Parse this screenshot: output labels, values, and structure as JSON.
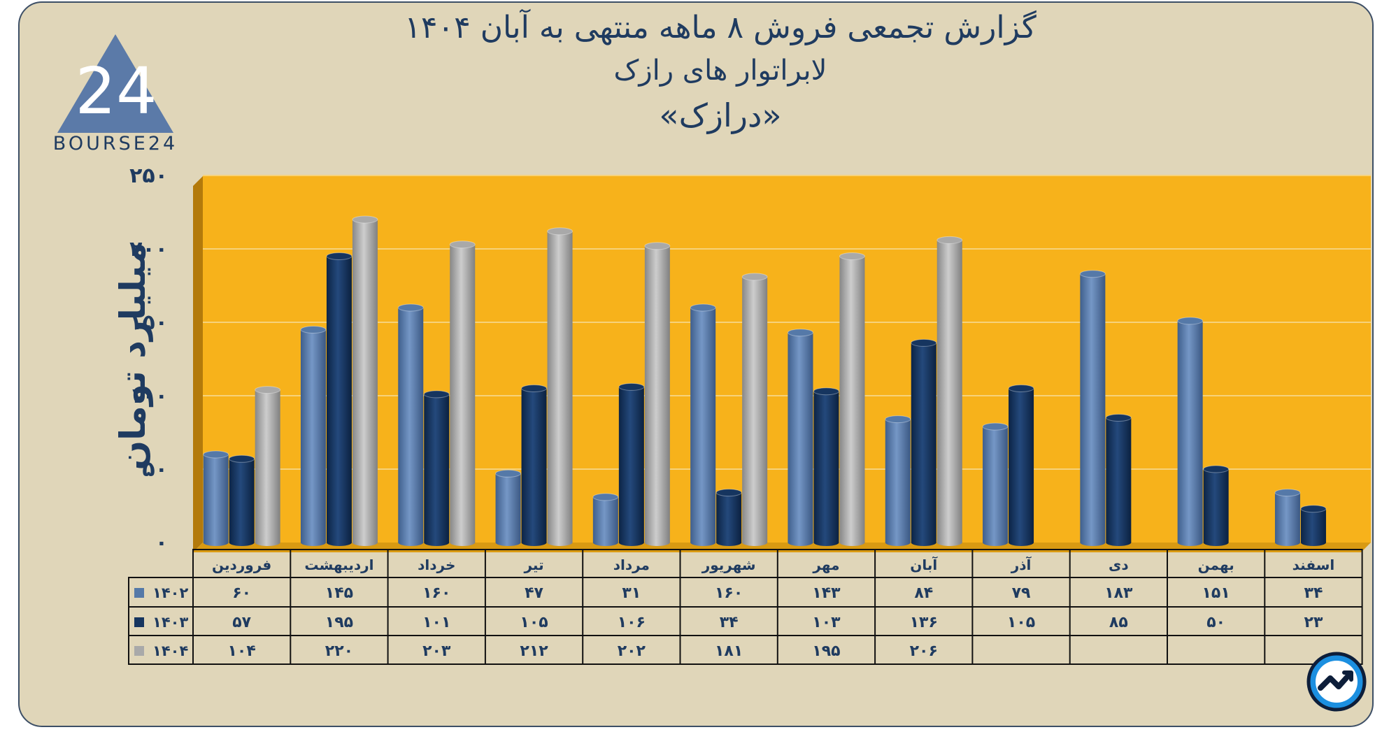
{
  "title": {
    "line1": "گزارش تجمعی فروش ۸ ماهه منتهی به آبان ۱۴۰۴",
    "line2": "لابراتوار های رازک",
    "line3": "«درازک»"
  },
  "logo": {
    "text": "BOURSE24",
    "mark": "24"
  },
  "badge": {
    "icon": "trend-arrow-icon"
  },
  "colors": {
    "background": "#e0d6b9",
    "plot": "#f7b21b",
    "series_1402": "#5579a8",
    "series_1403": "#16355f",
    "series_1404": "#a9a9a9",
    "text": "#1f3b60"
  },
  "chart_data": {
    "type": "bar",
    "ylabel": "میلیارد تومان",
    "ylim": [
      0,
      250
    ],
    "yticks": [
      0,
      50,
      100,
      150,
      200,
      250
    ],
    "ytick_labels": [
      "۰",
      "۵۰",
      "۱۰۰",
      "۱۵۰",
      "۲۰۰",
      "۲۵۰"
    ],
    "grid": true,
    "categories": [
      "فروردین",
      "اردیبهشت",
      "خرداد",
      "تیر",
      "مرداد",
      "شهریور",
      "مهر",
      "آبان",
      "آذر",
      "دی",
      "بهمن",
      "اسفند"
    ],
    "series": [
      {
        "name": "۱۴۰۲",
        "color": "#5579a8",
        "values": [
          60,
          145,
          160,
          47,
          31,
          160,
          143,
          84,
          79,
          183,
          151,
          34
        ],
        "labels": [
          "۶۰",
          "۱۴۵",
          "۱۶۰",
          "۴۷",
          "۳۱",
          "۱۶۰",
          "۱۴۳",
          "۸۴",
          "۷۹",
          "۱۸۳",
          "۱۵۱",
          "۳۴"
        ]
      },
      {
        "name": "۱۴۰۳",
        "color": "#16355f",
        "values": [
          57,
          195,
          101,
          105,
          106,
          34,
          103,
          136,
          105,
          85,
          50,
          23
        ],
        "labels": [
          "۵۷",
          "۱۹۵",
          "۱۰۱",
          "۱۰۵",
          "۱۰۶",
          "۳۴",
          "۱۰۳",
          "۱۳۶",
          "۱۰۵",
          "۸۵",
          "۵۰",
          "۲۳"
        ]
      },
      {
        "name": "۱۴۰۴",
        "color": "#a9a9a9",
        "values": [
          104,
          220,
          203,
          212,
          202,
          181,
          195,
          206,
          null,
          null,
          null,
          null
        ],
        "labels": [
          "۱۰۴",
          "۲۲۰",
          "۲۰۳",
          "۲۱۲",
          "۲۰۲",
          "۱۸۱",
          "۱۹۵",
          "۲۰۶",
          "",
          "",
          "",
          ""
        ]
      }
    ]
  }
}
